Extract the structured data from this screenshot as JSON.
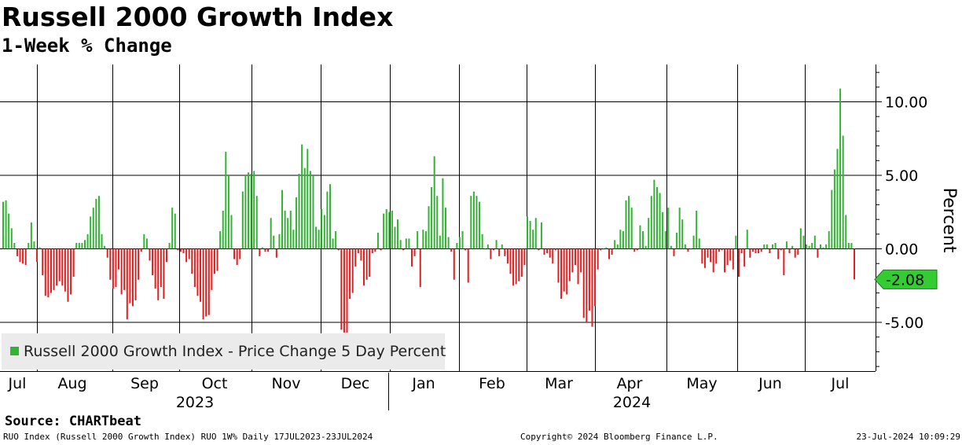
{
  "header": {
    "title": "Russell 2000 Growth Index",
    "subtitle": "1-Week % Change"
  },
  "footer": {
    "source": "Source: CHARTbeat",
    "left": "RUO Index (Russell 2000 Growth Index) RUO 1W% Daily 17JUL2023-23JUL2024",
    "center": "Copyright© 2024 Bloomberg Finance L.P.",
    "right": "23-Jul-2024 10:09:29"
  },
  "colors": {
    "positive": "#33b333",
    "negative": "#e02020",
    "last_badge": "#33cc33"
  },
  "chart_data": {
    "type": "bar",
    "title": "Russell 2000 Growth Index",
    "subtitle": "1-Week % Change",
    "ylabel": "Percent",
    "ylim": [
      -8.3,
      12.8
    ],
    "yticks": [
      10.0,
      5.0,
      0.0,
      -5.0
    ],
    "ytick_labels": [
      "10.00",
      "5.00",
      "0.00",
      "-5.00"
    ],
    "axis_side": "right",
    "grid": true,
    "legend": {
      "position": "bottom-left",
      "entries": [
        "Russell 2000 Growth Index - Price Change 5 Day Percent"
      ]
    },
    "last_value": -2.08,
    "last_value_label": "-2.08",
    "months": [
      "Jul",
      "Aug",
      "Sep",
      "Oct",
      "Nov",
      "Dec",
      "Jan",
      "Feb",
      "Mar",
      "Apr",
      "May",
      "Jun",
      "Jul"
    ],
    "years": [
      "2023",
      "2024"
    ],
    "series": [
      {
        "name": "Russell 2000 Growth Index - Price Change 5 Day Percent",
        "values": [
          3.2,
          3.3,
          2.4,
          1.4,
          0.4,
          -0.5,
          -0.9,
          -1.0,
          -1.1,
          0.4,
          1.8,
          0.5,
          -0.9,
          0.1,
          -1.8,
          -3.2,
          -3.3,
          -3.0,
          -2.8,
          -2.5,
          -2.2,
          -2.5,
          -2.9,
          -3.6,
          -3.1,
          -1.9,
          0.4,
          0.4,
          0.4,
          0.6,
          1.0,
          2.2,
          2.8,
          3.4,
          3.6,
          1.0,
          0.2,
          -0.6,
          -2.1,
          -2.7,
          -2.6,
          -1.4,
          -3.1,
          -2.8,
          -4.8,
          -3.7,
          -3.9,
          -3.5,
          -2.1,
          -0.2,
          1.0,
          0.7,
          -0.8,
          -1.8,
          -2.7,
          -3.5,
          -2.6,
          -3.4,
          -0.9,
          0.4,
          2.8,
          2.4,
          -0.1,
          -0.2,
          -0.3,
          -0.9,
          -0.7,
          -1.7,
          -2.6,
          -3.2,
          -3.6,
          -4.8,
          -4.6,
          -4.5,
          -2.8,
          -1.7,
          -1.5,
          1.2,
          2.6,
          6.6,
          5.0,
          2.3,
          -0.7,
          -1.1,
          -0.7,
          3.9,
          5.0,
          5.2,
          5.1,
          5.3,
          3.6,
          -0.5,
          0.1,
          -0.2,
          -0.2,
          2.1,
          0.9,
          -0.6,
          1.0,
          4.0,
          2.6,
          2.1,
          2.6,
          1.3,
          3.5,
          5.1,
          7.1,
          5.5,
          6.8,
          5.3,
          5.0,
          1.5,
          1.3,
          2.7,
          2.3,
          3.9,
          4.4,
          0.7,
          1.2,
          -0.1,
          -5.5,
          -5.7,
          -5.7,
          -3.4,
          -3.0,
          -1.2,
          -0.3,
          -0.8,
          -2.5,
          -2.1,
          -1.9,
          -0.3,
          -0.2,
          1.1,
          -0.1,
          2.4,
          2.7,
          2.5,
          2.6,
          1.5,
          2.0,
          0.6,
          -0.1,
          0.7,
          0.7,
          -1.2,
          -0.5,
          1.2,
          -2.6,
          1.3,
          1.2,
          2.9,
          4.2,
          6.3,
          3.6,
          0.9,
          4.8,
          2.8,
          0.8,
          -0.2,
          -2.1,
          0.4,
          0.8,
          1.2,
          -0.1,
          -2.3,
          3.6,
          3.9,
          3.6,
          3.2,
          1.0,
          0.0,
          0.3,
          -0.7,
          -0.1,
          0.6,
          -0.5,
          0.3,
          -0.5,
          -1.0,
          -1.7,
          -2.5,
          -2.4,
          -2.2,
          -1.9,
          -1.1,
          2.2,
          1.9,
          1.3,
          2.1,
          -0.1,
          1.8,
          -0.4,
          -0.3,
          -0.6,
          -1.0,
          -0.1,
          -2.3,
          -3.4,
          -2.9,
          -3.1,
          -2.2,
          -1.6,
          -1.1,
          -2.4,
          -1.6,
          -4.7,
          -5.0,
          -4.2,
          -5.3,
          -3.9,
          -1.4,
          -0.1,
          0.0,
          0.1,
          -0.7,
          -0.4,
          0.6,
          0.3,
          1.3,
          1.2,
          3.3,
          3.6,
          2.8,
          -0.2,
          -0.1,
          1.6,
          1.2,
          0.2,
          2.1,
          3.6,
          4.7,
          4.2,
          3.8,
          2.5,
          1.2,
          2.8,
          0.2,
          -0.5,
          1.1,
          2.8,
          2.0,
          0.3,
          -0.2,
          0.0,
          0.9,
          2.6,
          0.7,
          -1.0,
          -1.3,
          -0.6,
          -0.9,
          -1.6,
          -1.0,
          -0.2,
          -0.1,
          -1.6,
          -1.1,
          -0.8,
          -1.4,
          0.9,
          -1.9,
          -0.3,
          -1.2,
          1.3,
          -0.6,
          -0.2,
          -0.3,
          -0.3,
          -0.2,
          0.3,
          0.3,
          -0.3,
          0.3,
          0.4,
          -0.7,
          -0.1,
          -1.8,
          0.5,
          -0.3,
          0.2,
          -0.6,
          -0.4,
          1.4,
          0.9,
          0.3,
          0.2,
          0.4,
          0.9,
          -0.6,
          0.3,
          0.1,
          0.3,
          1.2,
          4.0,
          5.4,
          6.8,
          10.9,
          7.7,
          2.3,
          0.4,
          0.4,
          -2.08
        ]
      }
    ]
  }
}
